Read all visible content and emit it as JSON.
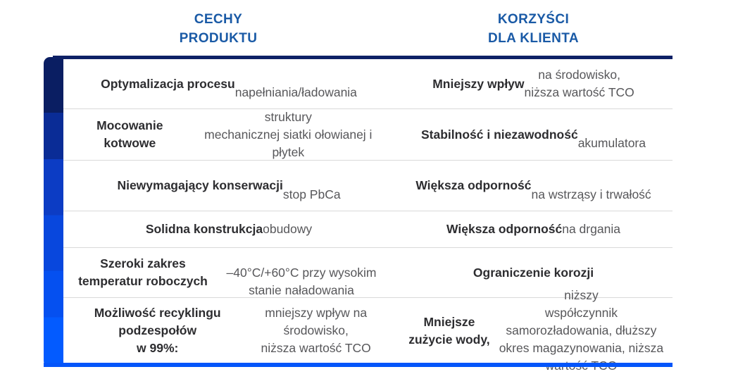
{
  "headers": {
    "features": "CECHY\nPRODUKTU",
    "benefits": "KORZYŚCI\nDLA KLIENTA"
  },
  "table": {
    "rows": [
      {
        "feature": [
          {
            "text": "Optymalizacja procesu",
            "bold": true
          },
          {
            "text": "\nnapełniania/ładowania",
            "bold": false
          }
        ],
        "benefit": [
          {
            "text": "Mniejszy wpływ",
            "bold": true
          },
          {
            "text": " na środowisko,\nniższa wartość TCO",
            "bold": false
          }
        ]
      },
      {
        "feature": [
          {
            "text": "Mocowanie kotwowe",
            "bold": true
          },
          {
            "text": " struktury\nmechanicznej siatki ołowianej i płytek",
            "bold": false
          }
        ],
        "benefit": [
          {
            "text": "Stabilność i niezawodność",
            "bold": true
          },
          {
            "text": "\nakumulatora",
            "bold": false
          }
        ]
      },
      {
        "feature": [
          {
            "text": "Niewymagający konserwacji",
            "bold": true
          },
          {
            "text": "\nstop PbCa",
            "bold": false
          }
        ],
        "benefit": [
          {
            "text": "Większa odporność",
            "bold": true
          },
          {
            "text": "\nna wstrząsy i trwałość",
            "bold": false
          }
        ]
      },
      {
        "feature": [
          {
            "text": "Solidna konstrukcja",
            "bold": true
          },
          {
            "text": " obudowy",
            "bold": false
          }
        ],
        "benefit": [
          {
            "text": "Większa odporność",
            "bold": true
          },
          {
            "text": " na drgania",
            "bold": false
          }
        ]
      },
      {
        "feature": [
          {
            "text": "Szeroki zakres temperatur roboczych",
            "bold": true
          },
          {
            "text": "\n–40°C/+60°C przy wysokim stanie naładowania",
            "bold": false
          }
        ],
        "benefit": [
          {
            "text": "Ograniczenie korozji",
            "bold": true
          }
        ]
      },
      {
        "feature": [
          {
            "text": "Możliwość recyklingu podzespołów\nw 99%:",
            "bold": true
          },
          {
            "text": " mniejszy wpływ na środowisko,\nniższa wartość TCO",
            "bold": false
          }
        ],
        "benefit": [
          {
            "text": "Mniejsze zużycie wody,",
            "bold": true
          },
          {
            "text": " niższy\nwspółczynnik samorozładowania, dłuższy\nokres magazynowania, niższa wartość TCO",
            "bold": false
          }
        ]
      }
    ]
  },
  "theme": {
    "css_vars": {
      "bg": "#ffffff",
      "header-blue": "#1a5aa6",
      "navy": "#0e2166",
      "bright-blue": "#0455fa",
      "divider": "#d9d9d9",
      "text-bold": "#2d2d30",
      "text-regular": "#57575a"
    },
    "bar_steps": [
      {
        "color": "#0a1e62",
        "until": 18
      },
      {
        "color": "#0a2c96",
        "until": 33
      },
      {
        "color": "#0c3cc4",
        "until": 51
      },
      {
        "color": "#0847dd",
        "until": 69
      },
      {
        "color": "#0550f0",
        "until": 84
      },
      {
        "color": "#035bff",
        "until": 100
      }
    ]
  }
}
